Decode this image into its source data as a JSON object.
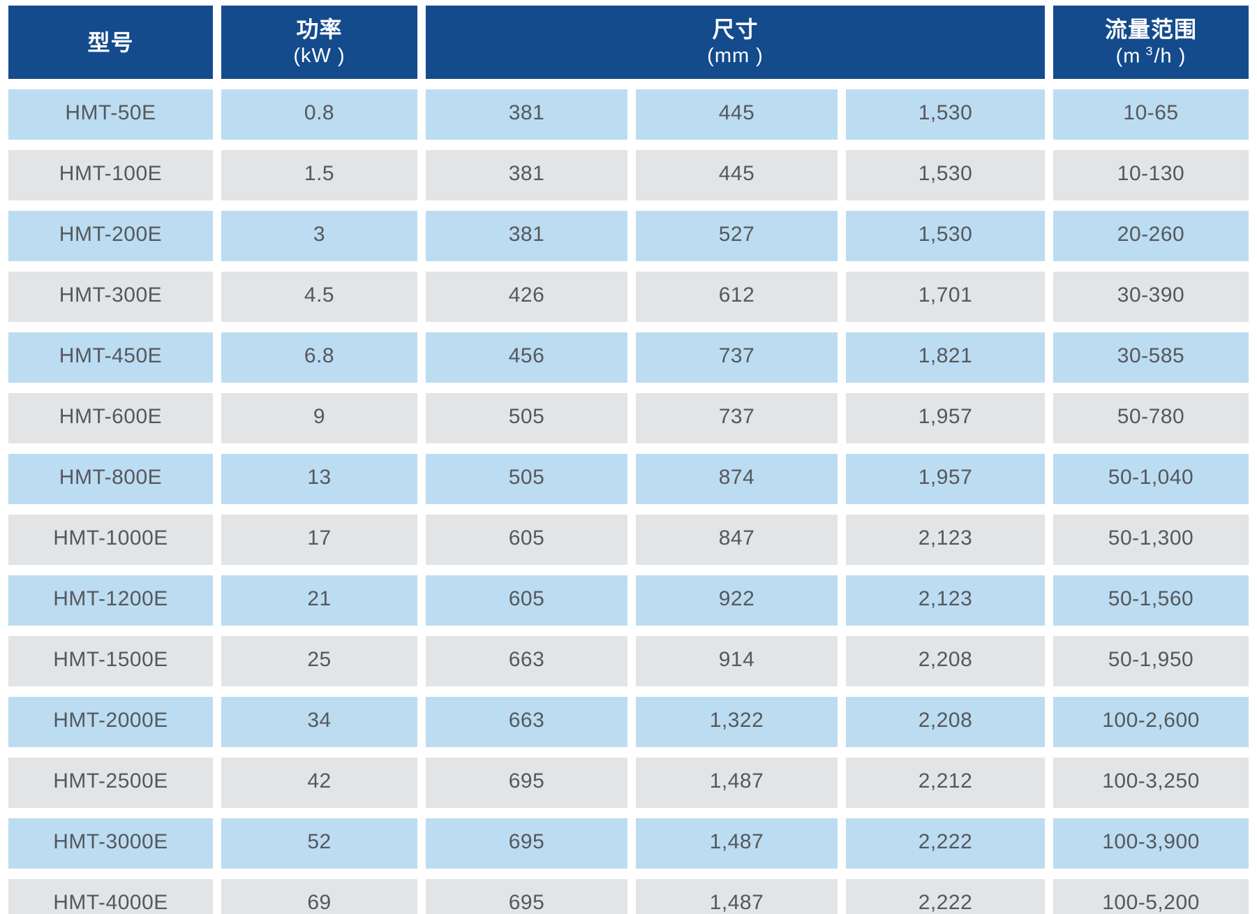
{
  "chart_data": {
    "type": "table",
    "headers": {
      "model": "型号",
      "power": "功率",
      "power_unit": "(kW )",
      "dimensions": "尺寸",
      "dimensions_unit": "(mm )",
      "flow": "流量范围",
      "flow_unit_prefix": "(m",
      "flow_unit_sup": "3",
      "flow_unit_suffix": "/h )"
    },
    "rows": [
      {
        "model": "HMT-50E",
        "power_kw": "0.8",
        "dim1": "381",
        "dim2": "445",
        "dim3": "1,530",
        "flow_range": "10-65"
      },
      {
        "model": "HMT-100E",
        "power_kw": "1.5",
        "dim1": "381",
        "dim2": "445",
        "dim3": "1,530",
        "flow_range": "10-130"
      },
      {
        "model": "HMT-200E",
        "power_kw": "3",
        "dim1": "381",
        "dim2": "527",
        "dim3": "1,530",
        "flow_range": "20-260"
      },
      {
        "model": "HMT-300E",
        "power_kw": "4.5",
        "dim1": "426",
        "dim2": "612",
        "dim3": "1,701",
        "flow_range": "30-390"
      },
      {
        "model": "HMT-450E",
        "power_kw": "6.8",
        "dim1": "456",
        "dim2": "737",
        "dim3": "1,821",
        "flow_range": "30-585"
      },
      {
        "model": "HMT-600E",
        "power_kw": "9",
        "dim1": "505",
        "dim2": "737",
        "dim3": "1,957",
        "flow_range": "50-780"
      },
      {
        "model": "HMT-800E",
        "power_kw": "13",
        "dim1": "505",
        "dim2": "874",
        "dim3": "1,957",
        "flow_range": "50-1,040"
      },
      {
        "model": "HMT-1000E",
        "power_kw": "17",
        "dim1": "605",
        "dim2": "847",
        "dim3": "2,123",
        "flow_range": "50-1,300"
      },
      {
        "model": "HMT-1200E",
        "power_kw": "21",
        "dim1": "605",
        "dim2": "922",
        "dim3": "2,123",
        "flow_range": "50-1,560"
      },
      {
        "model": "HMT-1500E",
        "power_kw": "25",
        "dim1": "663",
        "dim2": "914",
        "dim3": "2,208",
        "flow_range": "50-1,950"
      },
      {
        "model": "HMT-2000E",
        "power_kw": "34",
        "dim1": "663",
        "dim2": "1,322",
        "dim3": "2,208",
        "flow_range": "100-2,600"
      },
      {
        "model": "HMT-2500E",
        "power_kw": "42",
        "dim1": "695",
        "dim2": "1,487",
        "dim3": "2,212",
        "flow_range": "100-3,250"
      },
      {
        "model": "HMT-3000E",
        "power_kw": "52",
        "dim1": "695",
        "dim2": "1,487",
        "dim3": "2,222",
        "flow_range": "100-3,900"
      },
      {
        "model": "HMT-4000E",
        "power_kw": "69",
        "dim1": "695",
        "dim2": "1,487",
        "dim3": "2,222",
        "flow_range": "100-5,200"
      }
    ]
  },
  "colors": {
    "header_bg": "#134b8c",
    "header_text": "#ffffff",
    "row_alt_blue": "#bcdcf2",
    "row_alt_gray": "#e3e4e5",
    "cell_text": "#55585b",
    "page_bg": "#ffffff"
  }
}
